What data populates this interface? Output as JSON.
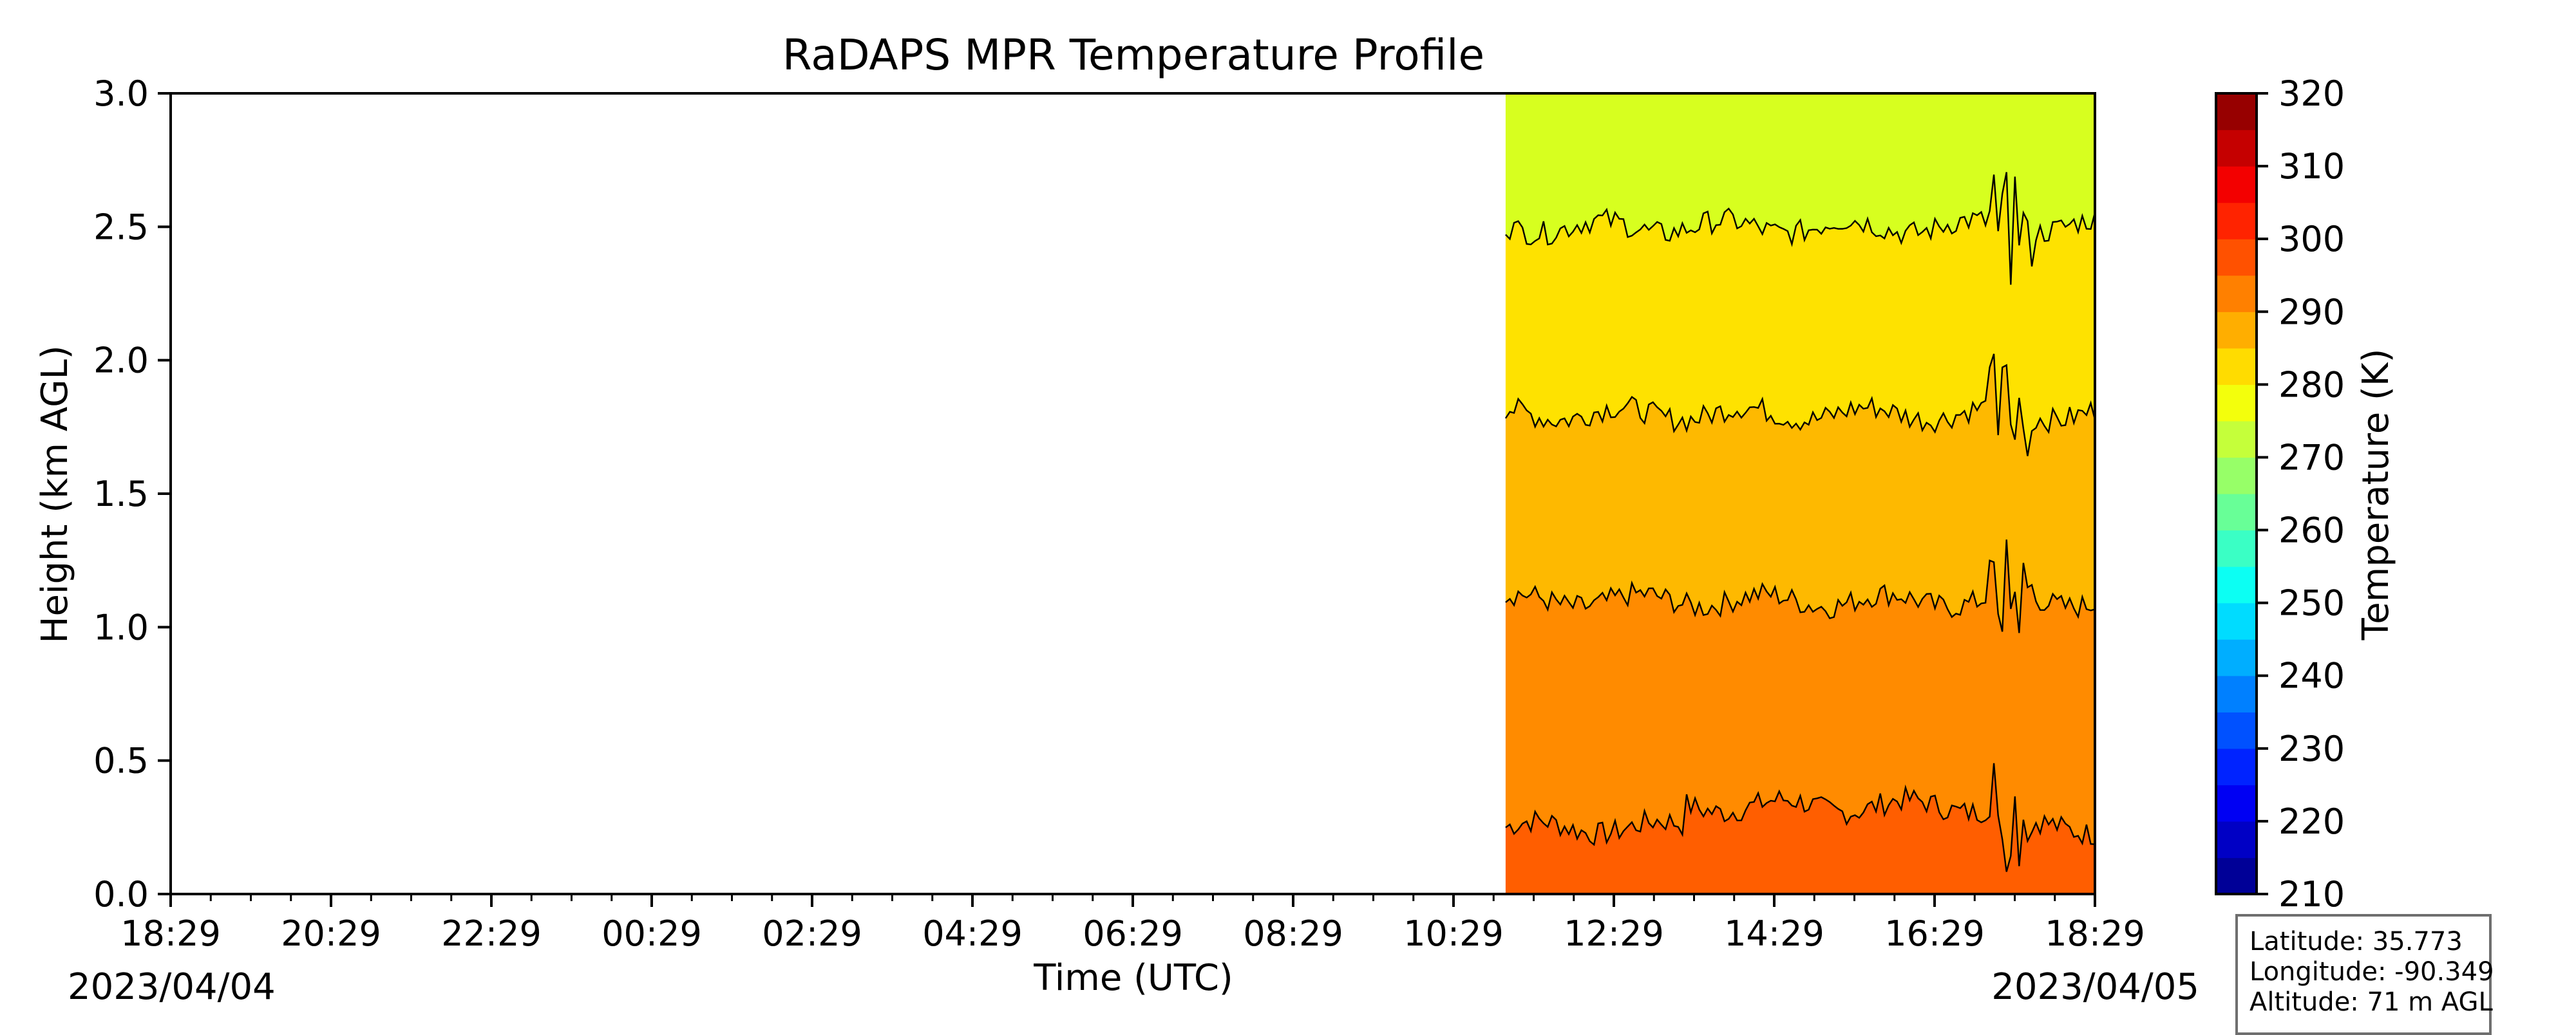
{
  "chart_data": {
    "type": "heatmap",
    "title": "RaDAPS MPR Temperature Profile",
    "xlabel": "Time (UTC)",
    "ylabel": "Height (km AGL)",
    "xlim": [
      "2023/04/04 18:29",
      "2023/04/05 18:29"
    ],
    "ylim": [
      0.0,
      3.0
    ],
    "x_tick_labels": [
      "18:29",
      "20:29",
      "22:29",
      "00:29",
      "02:29",
      "04:29",
      "06:29",
      "08:29",
      "10:29",
      "12:29",
      "14:29",
      "16:29",
      "18:29"
    ],
    "y_tick_labels": [
      "0.0",
      "0.5",
      "1.0",
      "1.5",
      "2.0",
      "2.5",
      "3.0"
    ],
    "date_labels": {
      "start": "2023/04/04",
      "end": "2023/04/05"
    },
    "data_start_time": "2023/04/05 11:08",
    "colorbar": {
      "label": "Temperature (K)",
      "range": [
        210,
        320
      ],
      "level_step": 5,
      "tick_labels": [
        "210",
        "220",
        "230",
        "240",
        "250",
        "260",
        "270",
        "280",
        "290",
        "300",
        "310",
        "320"
      ],
      "colormap": "jet"
    },
    "bands": [
      {
        "range_K": [
          275,
          280
        ],
        "color": "#d7ff1f",
        "height_km": [
          2.5,
          3.0
        ]
      },
      {
        "range_K": [
          280,
          285
        ],
        "color": "#fee200",
        "height_km": [
          1.8,
          2.5
        ]
      },
      {
        "range_K": [
          285,
          290
        ],
        "color": "#feb900",
        "height_km": [
          1.1,
          1.8
        ]
      },
      {
        "range_K": [
          290,
          295
        ],
        "color": "#ff8b00",
        "height_km": [
          0.25,
          1.1
        ]
      },
      {
        "range_K": [
          295,
          300
        ],
        "color": "#ff5e00",
        "height_km": [
          0.0,
          0.25
        ]
      }
    ],
    "contour_levels_K": [
      280,
      285,
      290,
      295
    ],
    "grid": false
  },
  "info": {
    "latitude": "Latitude: 35.773",
    "longitude": "Longitude: -90.349",
    "altitude": "Altitude: 71 m AGL"
  }
}
